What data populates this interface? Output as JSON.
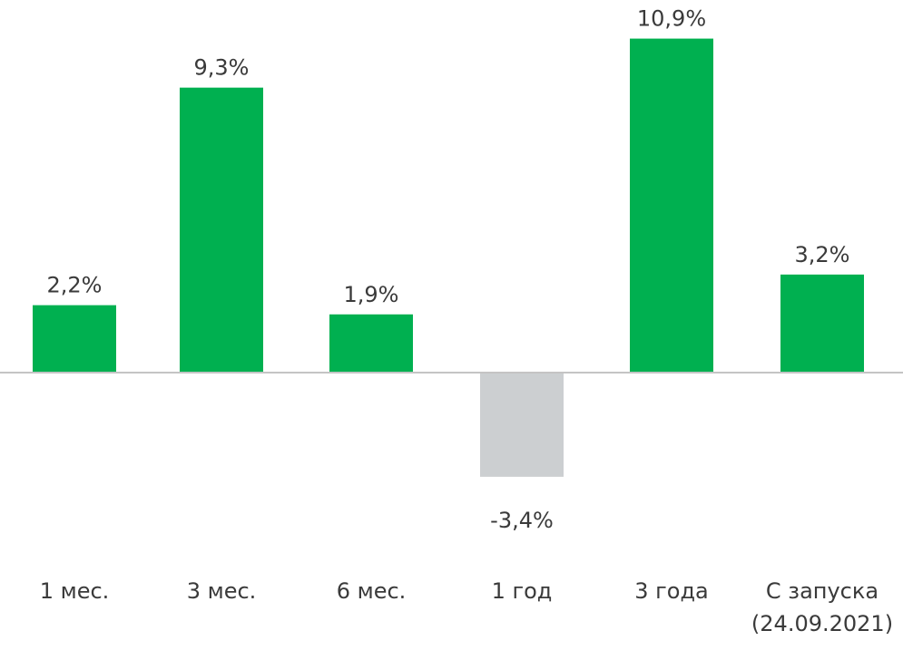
{
  "chart_data": {
    "type": "bar",
    "categories": [
      [
        "1 мес."
      ],
      [
        "3 мес."
      ],
      [
        "6 мес."
      ],
      [
        "1 год"
      ],
      [
        "3 года"
      ],
      [
        "С запуска",
        "(24.09.2021)"
      ]
    ],
    "values": [
      2.2,
      9.3,
      1.9,
      -3.4,
      10.9,
      3.2
    ],
    "value_labels": [
      "2,2%",
      "9,3%",
      "1,9%",
      "-3,4%",
      "10,9%",
      "3,2%"
    ],
    "title": "",
    "xlabel": "",
    "ylabel": "",
    "grid": false,
    "legend": "none",
    "colors": {
      "positive": "#00b050",
      "negative": "#cccfd1",
      "baseline": "#c4c4c4",
      "text": "#3a3a3a"
    }
  }
}
